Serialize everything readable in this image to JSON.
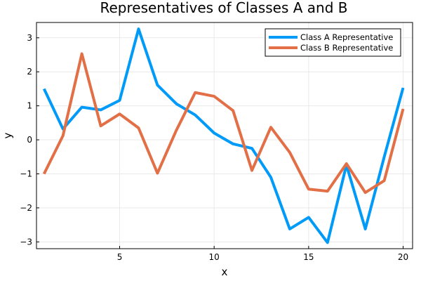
{
  "chart_data": {
    "type": "line",
    "title": "Representatives of Classes A and B",
    "xlabel": "x",
    "ylabel": "y",
    "xlim": [
      0.6,
      20.5
    ],
    "ylim": [
      -3.2,
      3.45
    ],
    "xticks": [
      5,
      10,
      15,
      20
    ],
    "yticks": [
      -3,
      -2,
      -1,
      0,
      1,
      2,
      3
    ],
    "grid": true,
    "legend_position": "top-right",
    "x": [
      1,
      2,
      3,
      4,
      5,
      6,
      7,
      8,
      9,
      10,
      11,
      12,
      13,
      14,
      15,
      16,
      17,
      18,
      19,
      20
    ],
    "series": [
      {
        "name": "Class A Representative",
        "color": "#009af9",
        "values": [
          1.5,
          0.32,
          0.96,
          0.88,
          1.16,
          3.26,
          1.61,
          1.06,
          0.73,
          0.2,
          -0.12,
          -0.25,
          -1.1,
          -2.62,
          -2.28,
          -3.02,
          -0.74,
          -2.62,
          -0.5,
          1.53
        ]
      },
      {
        "name": "Class B Representative",
        "color": "#e26f46",
        "values": [
          -1.0,
          0.12,
          2.53,
          0.41,
          0.76,
          0.35,
          -0.98,
          0.28,
          1.39,
          1.28,
          0.86,
          -0.9,
          0.37,
          -0.37,
          -1.45,
          -1.51,
          -0.7,
          -1.55,
          -1.2,
          0.91
        ]
      }
    ]
  }
}
